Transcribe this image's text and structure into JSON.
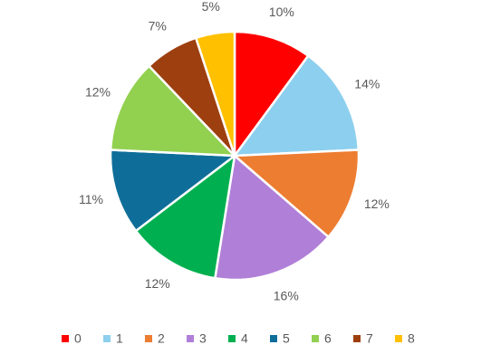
{
  "chart_data": {
    "type": "pie",
    "categories": [
      "0",
      "1",
      "2",
      "3",
      "4",
      "5",
      "6",
      "7",
      "8"
    ],
    "values": [
      10,
      14,
      12,
      16,
      12,
      11,
      12,
      7,
      5
    ],
    "value_labels": [
      "10%",
      "14%",
      "12%",
      "16%",
      "12%",
      "11%",
      "12%",
      "7%",
      "5%"
    ],
    "colors": [
      "#ff0000",
      "#8dcfee",
      "#ed7d31",
      "#b07fd8",
      "#00b050",
      "#0f6e99",
      "#92d050",
      "#9e3f0f",
      "#ffc000"
    ],
    "legend": "bottom"
  }
}
